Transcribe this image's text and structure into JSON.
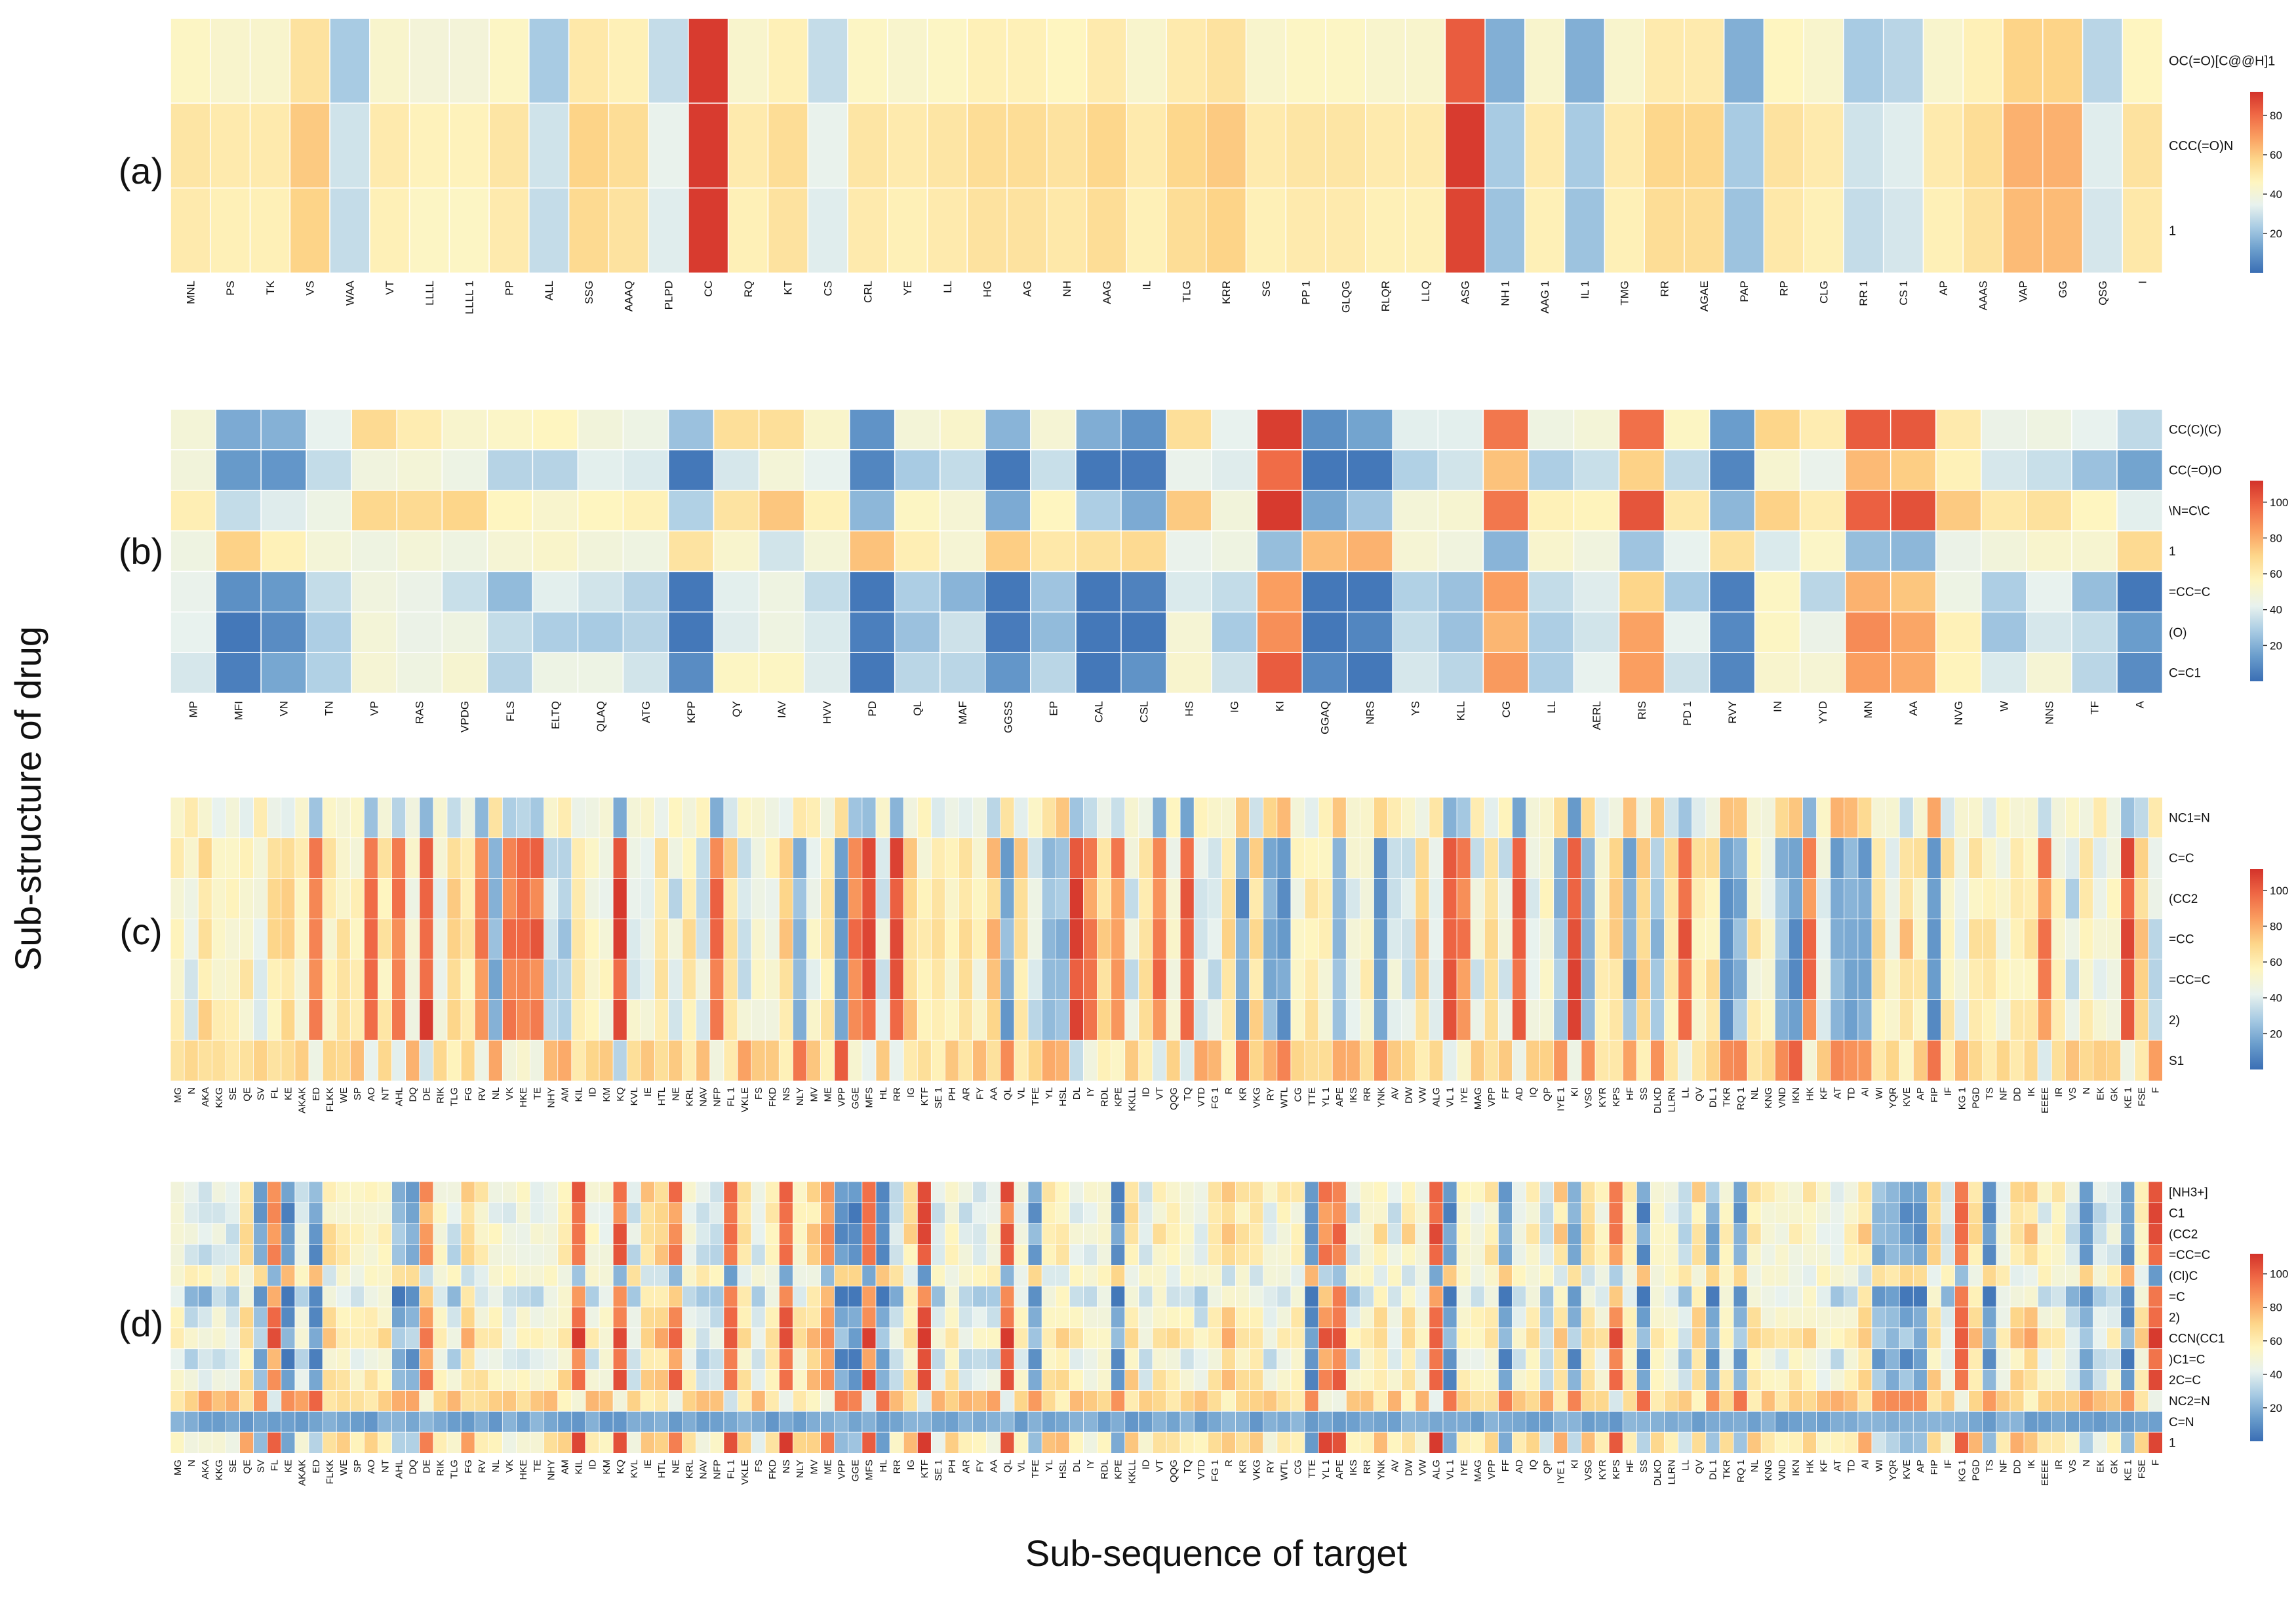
{
  "figure": {
    "ylabel": "Sub-structure of drug",
    "xlabel": "Sub-sequence of target"
  },
  "colormap": {
    "stops": [
      "#3a6eb4",
      "#6a9dcc",
      "#a8cbe3",
      "#e8f2ee",
      "#fef5c0",
      "#fdd68a",
      "#fa9e60",
      "#ef6845",
      "#d3322a"
    ]
  },
  "chart_data": [
    {
      "type": "heatmap",
      "panel_label": "(a)",
      "columns": [
        "MNL",
        "PS",
        "TK",
        "VS",
        "WAA",
        "VT",
        "LLLL",
        "LLLL 1",
        "PP",
        "ALL",
        "SSG",
        "AAAQ",
        "PLPD",
        "CC",
        "RQ",
        "KT",
        "CS",
        "CRL",
        "YE",
        "LL",
        "HG",
        "AG",
        "NH",
        "AAG",
        "IL",
        "TLG",
        "KRR",
        "SG",
        "PP 1",
        "GLQG",
        "RLQR",
        "LLQ",
        "ASG",
        "NH 1",
        "AAG 1",
        "IL 1",
        "TMG",
        "RR",
        "AGAE",
        "PAP",
        "RP",
        "CLG",
        "RR 1",
        "CS 1",
        "AP",
        "AAAS",
        "VAP",
        "GG",
        "QSG",
        "I"
      ],
      "rows": [
        "OC(=O)[C@@H]1",
        "CCC(=O)N",
        "1"
      ],
      "col_values": [
        47,
        45,
        45,
        55,
        25,
        45,
        42,
        42,
        47,
        25,
        53,
        50,
        30,
        95,
        45,
        50,
        30,
        47,
        45,
        47,
        50,
        50,
        48,
        52,
        45,
        52,
        55,
        45,
        47,
        47,
        45,
        45,
        85,
        18,
        45,
        18,
        45,
        52,
        52,
        18,
        48,
        45,
        25,
        28,
        45,
        50,
        60,
        60,
        28,
        48
      ],
      "row_offsets": [
        -2,
        5,
        3
      ],
      "colorbar": {
        "min": 0,
        "max": 92,
        "ticks": [
          20,
          40,
          60,
          80
        ]
      }
    },
    {
      "type": "heatmap",
      "panel_label": "(b)",
      "columns": [
        "MP",
        "MFI",
        "VN",
        "TN",
        "VP",
        "RAS",
        "VPDG",
        "FLS",
        "ELTQ",
        "QLAQ",
        "ATG",
        "KPP",
        "QY",
        "IAV",
        "HVV",
        "PD",
        "QL",
        "MAF",
        "GGSS",
        "EP",
        "CAL",
        "CSL",
        "HS",
        "IG",
        "KI",
        "GGAQ",
        "NRS",
        "YS",
        "KLL",
        "CG",
        "LL",
        "AERL",
        "RIS",
        "PD 1",
        "RVY",
        "IN",
        "YYD",
        "MN",
        "AA",
        "NVG",
        "W",
        "NNS",
        "TF",
        "A"
      ],
      "rows": [
        "CC(C)(C)",
        "CC(=O)O",
        "\\N=C\\C",
        "1",
        "=CC=C",
        "(O)",
        "C=C1"
      ],
      "colorbar": {
        "min": 0,
        "max": 112,
        "ticks": [
          20,
          40,
          60,
          80,
          100
        ]
      }
    },
    {
      "type": "heatmap",
      "panel_label": "(c)",
      "columns": [
        "MG",
        "N",
        "AKA",
        "KKG",
        "SE",
        "QE",
        "SV",
        "FL",
        "KE",
        "AKAK",
        "ED",
        "FLKK",
        "WE",
        "SP",
        "AO",
        "NT",
        "AHL",
        "DQ",
        "DE",
        "RIK",
        "TLG",
        "FG",
        "RV",
        "NL",
        "VK",
        "HKE",
        "TE",
        "NHY",
        "AM",
        "KIL",
        "ID",
        "KM",
        "KQ",
        "KVL",
        "IE",
        "HTL",
        "NE",
        "KRL",
        "NAV",
        "NFP",
        "FL 1",
        "VKLE",
        "FS",
        "FKD",
        "NS",
        "NLY",
        "MV",
        "ME",
        "VPP",
        "GGE",
        "MFS",
        "HL",
        "RR",
        "IG",
        "KTF",
        "SE 1",
        "PH",
        "AR",
        "FY",
        "AA",
        "QL",
        "VL",
        "TFE",
        "YL",
        "HSL",
        "DL",
        "IY",
        "RDL",
        "KPE",
        "KKLL",
        "ID",
        "VT",
        "QQG",
        "TQ",
        "VTD",
        "FG 1",
        "R",
        "KR",
        "VKG",
        "RY",
        "WTL",
        "CG",
        "TTE",
        "YL 1",
        "APE",
        "IKS",
        "RR",
        "YNK",
        "AV",
        "DW",
        "VW",
        "ALG",
        "VL 1",
        "IYE",
        "MAG",
        "VPP",
        "FF",
        "AD",
        "IQ",
        "QP",
        "IYE 1",
        "KI",
        "VSG",
        "KYR",
        "KPS",
        "HF",
        "SS",
        "DLKD",
        "LLRN",
        "LL",
        "QV",
        "DL 1",
        "TKR",
        "RQ 1",
        "NL",
        "KNG",
        "VND",
        "IKN",
        "HK",
        "KF",
        "AT",
        "TD",
        "AI",
        "WI",
        "YQR",
        "KVE",
        "AP",
        "FIP",
        "IF",
        "KG 1",
        "PGD",
        "TS",
        "NF",
        "DD",
        "IK",
        "EEEE",
        "IR",
        "VS",
        "N",
        "EK",
        "GK",
        "KE 1",
        "FSE",
        "F"
      ],
      "rows": [
        "NC1=N",
        "C=C",
        "(CC2",
        "=CC",
        "=CC=C",
        "2)",
        "S1"
      ],
      "colorbar": {
        "min": 0,
        "max": 112,
        "ticks": [
          20,
          40,
          60,
          80,
          100
        ]
      }
    },
    {
      "type": "heatmap",
      "panel_label": "(d)",
      "columns": [
        "MG",
        "N",
        "AKA",
        "KKG",
        "SE",
        "QE",
        "SV",
        "FL",
        "KE",
        "AKAK",
        "ED",
        "FLKK",
        "WE",
        "SP",
        "AO",
        "NT",
        "AHL",
        "DQ",
        "DE",
        "RIK",
        "TLG",
        "FG",
        "RV",
        "NL",
        "VK",
        "HKE",
        "TE",
        "NHY",
        "AM",
        "KIL",
        "ID",
        "KM",
        "KQ",
        "KVL",
        "IE",
        "HTL",
        "NE",
        "KRL",
        "NAV",
        "NFP",
        "FL 1",
        "VKLE",
        "FS",
        "FKD",
        "NS",
        "NLY",
        "MV",
        "ME",
        "VPP",
        "GGE",
        "MFS",
        "HL",
        "RR",
        "IG",
        "KTF",
        "SE 1",
        "PH",
        "AR",
        "FY",
        "AA",
        "QL",
        "VL",
        "TFE",
        "YL",
        "HSL",
        "DL",
        "IY",
        "RDL",
        "KPE",
        "KKLL",
        "ID",
        "VT",
        "QQG",
        "TQ",
        "VTD",
        "FG 1",
        "R",
        "KR",
        "VKG",
        "RY",
        "WTL",
        "CG",
        "TTE",
        "YL 1",
        "APE",
        "IKS",
        "RR",
        "YNK",
        "AV",
        "DW",
        "VW",
        "ALG",
        "VL 1",
        "IYE",
        "MAG",
        "VPP",
        "FF",
        "AD",
        "IQ",
        "QP",
        "IYE 1",
        "KI",
        "VSG",
        "KYR",
        "KPS",
        "HF",
        "SS",
        "DLKD",
        "LLRN",
        "LL",
        "QV",
        "DL 1",
        "TKR",
        "RQ 1",
        "NL",
        "KNG",
        "VND",
        "IKN",
        "HK",
        "KF",
        "AT",
        "TD",
        "AI",
        "WI",
        "YQR",
        "KVE",
        "AP",
        "FIP",
        "IF",
        "KG 1",
        "PGD",
        "TS",
        "NF",
        "DD",
        "IK",
        "EEEE",
        "IR",
        "VS",
        "N",
        "EK",
        "GK",
        "KE 1",
        "FSE",
        "F"
      ],
      "rows": [
        "[NH3+]",
        "C1",
        "(CC2",
        "=CC=C",
        "(Cl)C",
        "=C",
        "2)",
        "CCN(CC1",
        ")C1=C",
        "2C=C",
        "NC2=N",
        "C=N",
        "1"
      ],
      "colorbar": {
        "min": 0,
        "max": 112,
        "ticks": [
          20,
          40,
          60,
          80,
          100
        ]
      }
    }
  ]
}
